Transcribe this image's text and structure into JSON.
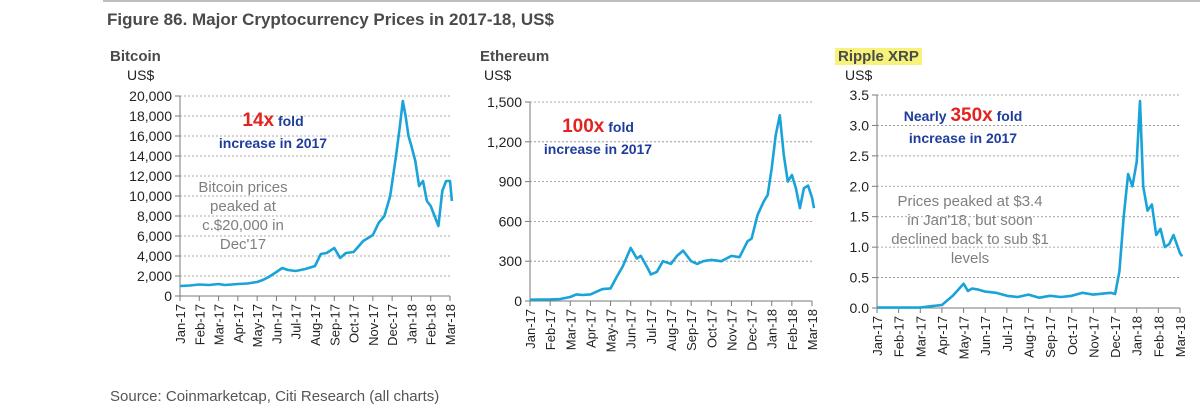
{
  "figure": {
    "title": "Figure 86. Major Cryptocurrency Prices in 2017-18, US$",
    "source": "Source: Coinmarketcap, Citi Research (all charts)"
  },
  "colors": {
    "line": "#1aa3d9",
    "accent_red": "#e3231f",
    "annotation_blue": "#1e3c9c",
    "note_gray": "#7f7f7f",
    "highlight": "#f7f27a"
  },
  "chart_data": [
    {
      "type": "line",
      "title": "Bitcoin",
      "ylabel": "US$",
      "ylim": [
        0,
        20000
      ],
      "yticks": [
        0,
        2000,
        4000,
        6000,
        8000,
        10000,
        12000,
        14000,
        16000,
        18000,
        20000
      ],
      "ytick_labels": [
        "0",
        "2,000",
        "4,000",
        "6,000",
        "8,000",
        "10,000",
        "12,000",
        "14,000",
        "16,000",
        "18,000",
        "20,000"
      ],
      "xticks": [
        "Jan-17",
        "Feb-17",
        "Mar-17",
        "Apr-17",
        "May-17",
        "Jun-17",
        "Jul-17",
        "Aug-17",
        "Sep-17",
        "Oct-17",
        "Nov-17",
        "Dec-17",
        "Jan-18",
        "Feb-18",
        "Mar-18"
      ],
      "grid": true,
      "x": [
        0,
        0.5,
        1,
        1.5,
        2,
        2.3,
        2.7,
        3,
        3.5,
        4,
        4.3,
        4.6,
        5,
        5.3,
        5.6,
        6,
        6.5,
        7,
        7.3,
        7.6,
        8,
        8.3,
        8.6,
        9,
        9.5,
        10,
        10.3,
        10.6,
        10.9,
        11.2,
        11.4,
        11.55,
        11.7,
        11.85,
        12,
        12.2,
        12.4,
        12.6,
        12.8,
        13,
        13.2,
        13.4,
        13.6,
        13.8,
        14,
        14.1
      ],
      "values": [
        1000,
        1050,
        1150,
        1100,
        1200,
        1100,
        1150,
        1200,
        1250,
        1400,
        1600,
        1900,
        2400,
        2800,
        2600,
        2500,
        2700,
        3000,
        4200,
        4300,
        4800,
        3800,
        4300,
        4400,
        5500,
        6100,
        7300,
        8000,
        10000,
        14000,
        17000,
        19500,
        18000,
        16000,
        15000,
        13500,
        11000,
        11500,
        9500,
        9000,
        8000,
        7000,
        10500,
        11500,
        11500,
        9500
      ],
      "series_name": "",
      "annotations": [
        {
          "big": "14x",
          "small": "fold",
          "line2": "increase in 2017"
        },
        {
          "lines": [
            "Bitcoin prices",
            "peaked at",
            "c.$20,000 in",
            "Dec'17"
          ]
        }
      ]
    },
    {
      "type": "line",
      "title": "Ethereum",
      "ylabel": "US$",
      "ylim": [
        0,
        1500
      ],
      "yticks": [
        0,
        300,
        600,
        900,
        1200,
        1500
      ],
      "ytick_labels": [
        "0",
        "300",
        "600",
        "900",
        "1,200",
        "1,500"
      ],
      "xticks": [
        "Jan-17",
        "Feb-17",
        "Mar-17",
        "Apr-17",
        "May-17",
        "Jun-17",
        "Jul-17",
        "Aug-17",
        "Sep-17",
        "Oct-17",
        "Nov-17",
        "Dec-17",
        "Jan-18",
        "Feb-18",
        "Mar-18"
      ],
      "grid": true,
      "x": [
        0,
        1,
        1.5,
        2,
        2.3,
        2.6,
        3,
        3.3,
        3.6,
        4,
        4.3,
        4.6,
        5,
        5.3,
        5.5,
        5.8,
        6,
        6.3,
        6.6,
        7,
        7.3,
        7.6,
        8,
        8.3,
        8.6,
        9,
        9.5,
        10,
        10.4,
        10.8,
        11,
        11.3,
        11.6,
        11.8,
        12,
        12.2,
        12.4,
        12.6,
        12.8,
        13,
        13.2,
        13.4,
        13.6,
        13.8,
        14,
        14.1
      ],
      "values": [
        10,
        12,
        15,
        30,
        50,
        45,
        50,
        70,
        90,
        95,
        180,
        260,
        400,
        320,
        340,
        260,
        200,
        220,
        300,
        280,
        340,
        380,
        300,
        280,
        300,
        310,
        300,
        340,
        330,
        450,
        470,
        650,
        750,
        800,
        1000,
        1250,
        1400,
        1100,
        900,
        950,
        850,
        700,
        850,
        870,
        780,
        700
      ],
      "series_name": "",
      "annotations": [
        {
          "big": "100x",
          "small": "fold",
          "line2": "increase in 2017"
        }
      ]
    },
    {
      "type": "line",
      "title": "Ripple XRP",
      "ylabel": "US$",
      "ylim": [
        0,
        3.5
      ],
      "yticks": [
        0,
        0.5,
        1,
        1.5,
        2,
        2.5,
        3,
        3.5
      ],
      "ytick_labels": [
        "0.0",
        "0.5",
        "1.0",
        "1.5",
        "2.0",
        "2.5",
        "3.0",
        "3.5"
      ],
      "xticks": [
        "Jan-17",
        "Feb-17",
        "Mar-17",
        "Apr-17",
        "May-17",
        "Jun-17",
        "Jul-17",
        "Aug-17",
        "Sep-17",
        "Oct-17",
        "Nov-17",
        "Dec-17",
        "Jan-18",
        "Feb-18",
        "Mar-18"
      ],
      "grid": true,
      "x": [
        0,
        1,
        2,
        2.5,
        3,
        3.5,
        4,
        4.2,
        4.4,
        4.7,
        5,
        5.5,
        6,
        6.5,
        7,
        7.5,
        8,
        8.5,
        9,
        9.5,
        10,
        10.5,
        10.8,
        11,
        11.2,
        11.4,
        11.6,
        11.8,
        12,
        12.15,
        12.3,
        12.5,
        12.7,
        12.9,
        13.1,
        13.3,
        13.5,
        13.7,
        13.9,
        14,
        14.1
      ],
      "values": [
        0.006,
        0.006,
        0.007,
        0.03,
        0.05,
        0.2,
        0.4,
        0.28,
        0.32,
        0.3,
        0.27,
        0.25,
        0.2,
        0.18,
        0.22,
        0.17,
        0.2,
        0.18,
        0.2,
        0.25,
        0.22,
        0.24,
        0.25,
        0.23,
        0.6,
        1.5,
        2.2,
        2.0,
        2.4,
        3.4,
        2.0,
        1.6,
        1.7,
        1.2,
        1.3,
        1.0,
        1.05,
        1.2,
        1.0,
        0.9,
        0.85
      ],
      "series_name": "",
      "annotations": [
        {
          "pre": "Nearly",
          "big": "350x",
          "small": "fold",
          "line2": "increase in 2017"
        },
        {
          "lines": [
            "Prices peaked at $3.4",
            "in Jan'18, but soon",
            "declined back to sub $1",
            "levels"
          ]
        }
      ]
    }
  ]
}
